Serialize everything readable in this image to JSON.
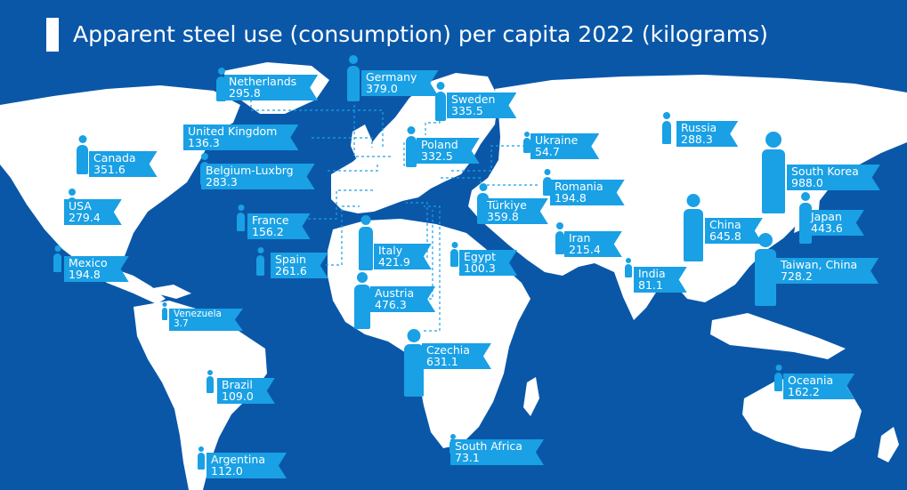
{
  "title": "Apparent steel use (consumption) per capita 2022 (kilograms)",
  "colors": {
    "ocean": "#0a57a8",
    "land": "#ffffff",
    "tag": "#19a0e5",
    "text": "#ffffff"
  },
  "countries": [
    {
      "id": "netherlands",
      "name": "Netherlands",
      "value": "295.8"
    },
    {
      "id": "germany",
      "name": "Germany",
      "value": "379.0"
    },
    {
      "id": "sweden",
      "name": "Sweden",
      "value": "335.5"
    },
    {
      "id": "united-kingdom",
      "name": "United Kingdom",
      "value": "136.3"
    },
    {
      "id": "poland",
      "name": "Poland",
      "value": "332.5"
    },
    {
      "id": "ukraine",
      "name": "Ukraine",
      "value": "54.7"
    },
    {
      "id": "russia",
      "name": "Russia",
      "value": "288.3"
    },
    {
      "id": "canada",
      "name": "Canada",
      "value": "351.6"
    },
    {
      "id": "belgium-luxembourg",
      "name": "Belgium-Luxbrg",
      "value": "283.3"
    },
    {
      "id": "romania",
      "name": "Romania",
      "value": "194.8"
    },
    {
      "id": "south-korea",
      "name": "South Korea",
      "value": "988.0"
    },
    {
      "id": "usa",
      "name": "USA",
      "value": "279.4"
    },
    {
      "id": "turkiye",
      "name": "Türkiye",
      "value": "359.8"
    },
    {
      "id": "france",
      "name": "France",
      "value": "156.2"
    },
    {
      "id": "japan",
      "name": "Japan",
      "value": "443.6"
    },
    {
      "id": "china",
      "name": "China",
      "value": "645.8"
    },
    {
      "id": "iran",
      "name": "Iran",
      "value": "215.4"
    },
    {
      "id": "italy",
      "name": "Italy",
      "value": "421.9"
    },
    {
      "id": "egypt",
      "name": "Egypt",
      "value": "100.3"
    },
    {
      "id": "spain",
      "name": "Spain",
      "value": "261.6"
    },
    {
      "id": "mexico",
      "name": "Mexico",
      "value": "194.8"
    },
    {
      "id": "taiwan-china",
      "name": "Taiwan, China",
      "value": "728.2"
    },
    {
      "id": "india",
      "name": "India",
      "value": "81.1"
    },
    {
      "id": "austria",
      "name": "Austria",
      "value": "476.3"
    },
    {
      "id": "venezuela",
      "name": "Venezuela",
      "value": "3.7"
    },
    {
      "id": "czechia",
      "name": "Czechia",
      "value": "631.1"
    },
    {
      "id": "oceania",
      "name": "Oceania",
      "value": "162.2"
    },
    {
      "id": "brazil",
      "name": "Brazil",
      "value": "109.0"
    },
    {
      "id": "south-africa",
      "name": "South Africa",
      "value": "73.1"
    },
    {
      "id": "argentina",
      "name": "Argentina",
      "value": "112.0"
    }
  ]
}
